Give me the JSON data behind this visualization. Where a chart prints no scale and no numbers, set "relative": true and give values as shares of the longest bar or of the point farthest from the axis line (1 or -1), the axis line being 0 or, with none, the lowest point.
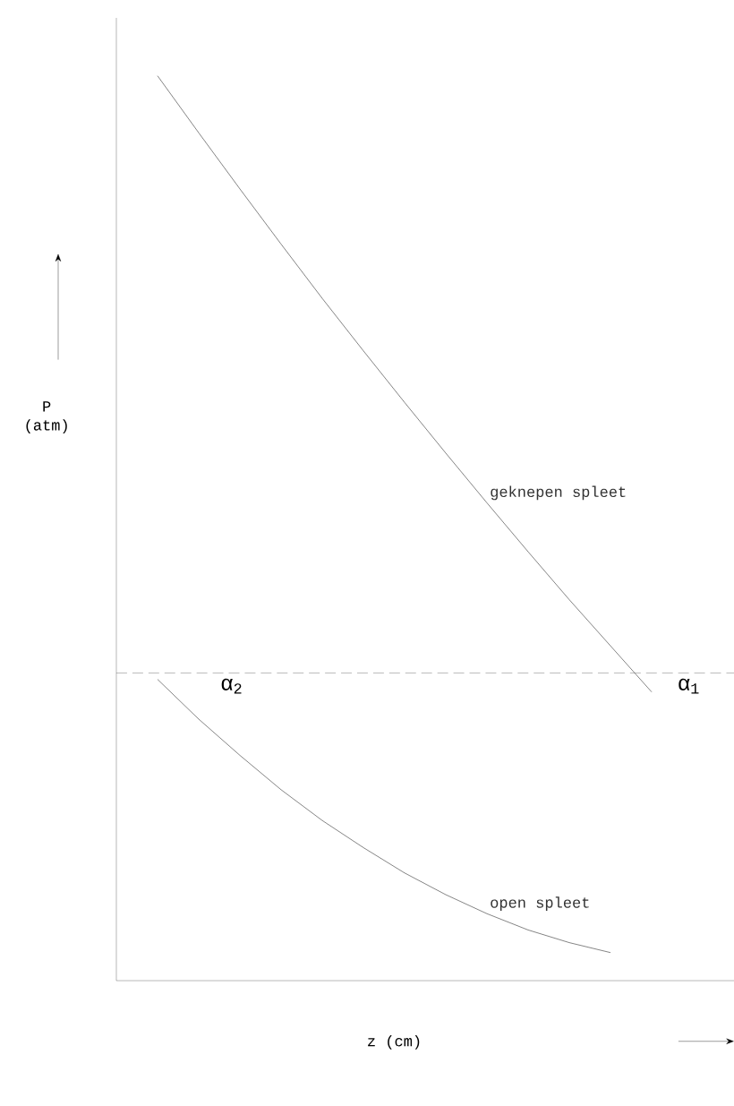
{
  "chart_data": {
    "type": "line",
    "relative": true,
    "xlabel": "z (cm)",
    "ylabel": "P (atm)",
    "legend": false,
    "marker": "none",
    "categories": [
      null,
      null,
      null,
      null,
      null,
      null,
      null,
      null,
      null,
      null,
      null,
      null,
      null,
      null,
      null
    ],
    "series": [
      {
        "name": "geknepen spleet",
        "color": "#333333",
        "values": [
          null,
          1.0,
          0.937,
          0.875,
          0.814,
          0.754,
          0.696,
          0.639,
          0.583,
          0.528,
          0.474,
          0.421,
          0.37,
          0.319,
          null
        ]
      },
      {
        "name": "open spleet",
        "color": "#333333",
        "values": [
          null,
          0.333,
          0.289,
          0.249,
          0.211,
          0.177,
          0.147,
          0.119,
          0.095,
          0.074,
          0.056,
          0.042,
          0.031,
          null,
          null
        ]
      }
    ],
    "ref_lines": [
      {
        "axis": "y",
        "value": 0.34,
        "line_style": "dashed",
        "color": "#555555"
      }
    ],
    "annotations": [
      {
        "text": "α$_{2}$",
        "y": 0.34
      },
      {
        "text": "α$_{1}$",
        "y": 0.34
      }
    ]
  }
}
